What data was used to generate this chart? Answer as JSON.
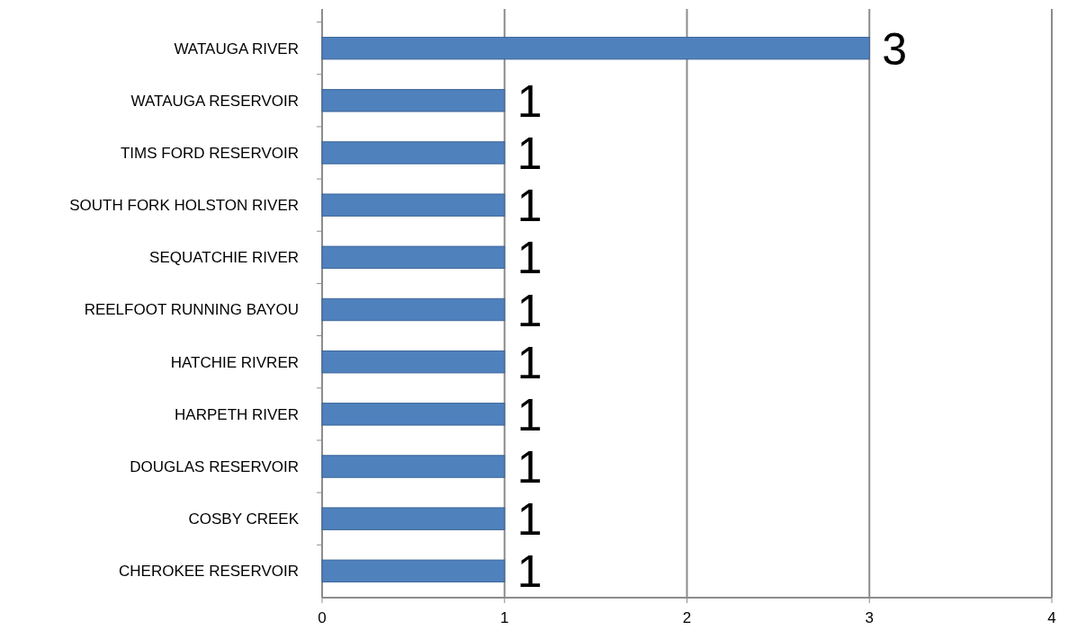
{
  "chart_data": {
    "type": "bar",
    "orientation": "horizontal",
    "categories": [
      "WATAUGA RIVER",
      "WATAUGA RESERVOIR",
      "TIMS FORD RESERVOIR",
      "SOUTH FORK HOLSTON RIVER",
      "SEQUATCHIE RIVER",
      "REELFOOT RUNNING BAYOU",
      "HATCHIE RIVRER",
      "HARPETH RIVER",
      "DOUGLAS RESERVOIR",
      "COSBY CREEK",
      "CHEROKEE RESERVOIR"
    ],
    "values": [
      3,
      1,
      1,
      1,
      1,
      1,
      1,
      1,
      1,
      1,
      1
    ],
    "color": "#4f81bd",
    "xlim": [
      0,
      4
    ],
    "xticks": [
      0,
      1,
      2,
      3,
      4
    ],
    "grid": "x",
    "data_labels": true
  }
}
